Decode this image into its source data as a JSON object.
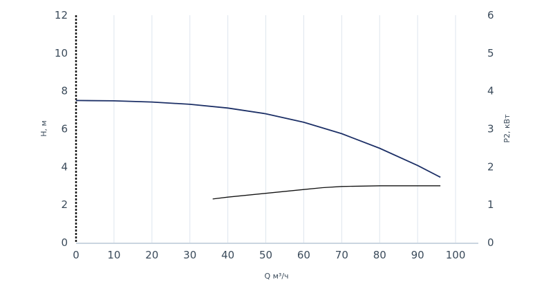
{
  "chart_data": {
    "type": "line",
    "xlabel": "Q м³/ч",
    "ylabel_left": "H, м",
    "ylabel_right": "P2, кВт",
    "xlim": [
      0,
      106
    ],
    "ylim_left": [
      0,
      12
    ],
    "ylim_right": [
      0,
      6
    ],
    "x_ticks": [
      0,
      10,
      20,
      30,
      40,
      50,
      60,
      70,
      80,
      90,
      100
    ],
    "y_left_ticks": [
      0,
      2,
      4,
      6,
      8,
      10,
      12
    ],
    "y_right_ticks": [
      0,
      1,
      2,
      3,
      4,
      5,
      6
    ],
    "grid": "vertical",
    "series": [
      {
        "name": "H, м",
        "axis": "left",
        "color": "#1c2f66",
        "points": [
          [
            0,
            7.5
          ],
          [
            10,
            7.48
          ],
          [
            20,
            7.42
          ],
          [
            30,
            7.3
          ],
          [
            40,
            7.1
          ],
          [
            50,
            6.8
          ],
          [
            60,
            6.35
          ],
          [
            70,
            5.75
          ],
          [
            80,
            4.98
          ],
          [
            90,
            4.07
          ],
          [
            96,
            3.45
          ]
        ]
      },
      {
        "name": "P2, кВт",
        "axis": "right",
        "color": "#111111",
        "points": [
          [
            36,
            1.15
          ],
          [
            40,
            1.2
          ],
          [
            50,
            1.3
          ],
          [
            60,
            1.4
          ],
          [
            65,
            1.45
          ],
          [
            70,
            1.48
          ],
          [
            80,
            1.5
          ],
          [
            90,
            1.5
          ],
          [
            96,
            1.5
          ]
        ]
      }
    ]
  }
}
